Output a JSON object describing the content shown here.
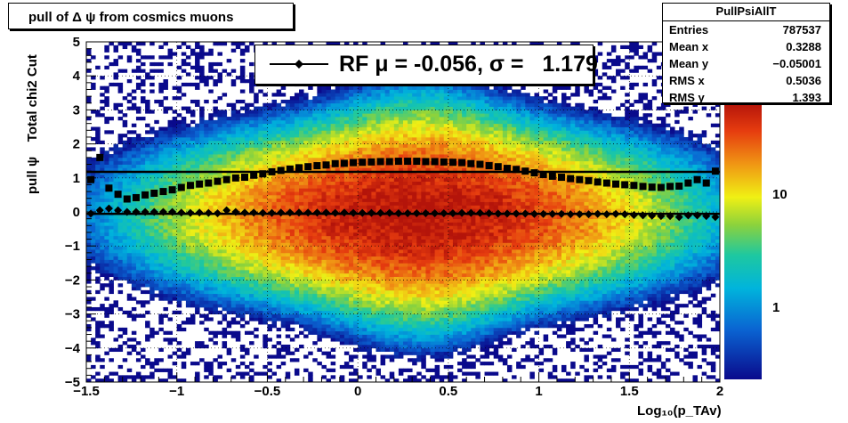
{
  "title": "pull of Δ ψ from cosmics muons",
  "stats": {
    "name": "PullPsiAllT",
    "rows": [
      {
        "k": "Entries",
        "v": "787537"
      },
      {
        "k": "Mean x",
        "v": "0.3288"
      },
      {
        "k": "Mean y",
        "v": "−0.05001"
      },
      {
        "k": "RMS x",
        "v": "0.5036"
      },
      {
        "k": "RMS y",
        "v": "1.393"
      }
    ]
  },
  "legend": {
    "text": "RF μ = -0.056, σ =   1.179"
  },
  "chart_data": {
    "type": "heatmap",
    "title": "pull of Δ ψ from cosmics muons",
    "xlabel": "Log₁₀(p_TAv)",
    "ylabel": "pull ψ    Total chi2 Cut",
    "xlim": [
      -1.5,
      2
    ],
    "ylim": [
      -5,
      5
    ],
    "x_ticks": [
      "−1.5",
      "−1",
      "−0.5",
      "0",
      "0.5",
      "1",
      "1.5",
      "2"
    ],
    "y_ticks": [
      "−5",
      "−4",
      "−3",
      "−2",
      "−1",
      "0",
      "1",
      "2",
      "3",
      "4",
      "5"
    ],
    "z_ticks": [
      "1",
      "10"
    ],
    "z_scale": "log",
    "grid": true,
    "horizontal_lines": [
      1.179,
      -0.056
    ],
    "series": [
      {
        "name": "RF",
        "marker": "diamond",
        "x": [
          -1.475,
          -1.425,
          -1.375,
          -1.325,
          -1.275,
          -1.225,
          -1.175,
          -1.125,
          -1.075,
          -1.025,
          -0.975,
          -0.925,
          -0.875,
          -0.825,
          -0.775,
          -0.725,
          -0.675,
          -0.625,
          -0.575,
          -0.525,
          -0.475,
          -0.425,
          -0.375,
          -0.325,
          -0.275,
          -0.225,
          -0.175,
          -0.125,
          -0.075,
          -0.025,
          0.025,
          0.075,
          0.125,
          0.175,
          0.225,
          0.275,
          0.325,
          0.375,
          0.425,
          0.475,
          0.525,
          0.575,
          0.625,
          0.675,
          0.725,
          0.775,
          0.825,
          0.875,
          0.925,
          0.975,
          1.025,
          1.075,
          1.125,
          1.175,
          1.225,
          1.275,
          1.325,
          1.375,
          1.425,
          1.475,
          1.525,
          1.575,
          1.625,
          1.675,
          1.725,
          1.775,
          1.825,
          1.875,
          1.925,
          1.975
        ],
        "y": [
          -0.05,
          0.05,
          0.1,
          0.05,
          0.0,
          0.0,
          0.0,
          0.0,
          0.0,
          0.0,
          -0.02,
          -0.03,
          -0.02,
          -0.03,
          -0.04,
          0.05,
          0.0,
          -0.02,
          -0.02,
          -0.03,
          -0.03,
          -0.02,
          -0.02,
          -0.02,
          -0.02,
          -0.02,
          -0.02,
          -0.03,
          -0.02,
          -0.03,
          -0.03,
          -0.03,
          -0.03,
          -0.03,
          -0.04,
          -0.04,
          -0.04,
          -0.04,
          -0.04,
          -0.04,
          -0.04,
          -0.03,
          -0.03,
          -0.03,
          -0.04,
          -0.05,
          -0.05,
          -0.05,
          -0.05,
          -0.06,
          -0.06,
          -0.06,
          -0.06,
          -0.07,
          -0.07,
          -0.07,
          -0.06,
          -0.07,
          -0.06,
          -0.07,
          -0.09,
          -0.1,
          -0.11,
          -0.12,
          -0.12,
          -0.15,
          -0.1,
          -0.1,
          -0.12,
          -0.15
        ]
      },
      {
        "name": "sigma",
        "marker": "square",
        "x": [
          -1.475,
          -1.425,
          -1.375,
          -1.325,
          -1.275,
          -1.225,
          -1.175,
          -1.125,
          -1.075,
          -1.025,
          -0.975,
          -0.925,
          -0.875,
          -0.825,
          -0.775,
          -0.725,
          -0.675,
          -0.625,
          -0.575,
          -0.525,
          -0.475,
          -0.425,
          -0.375,
          -0.325,
          -0.275,
          -0.225,
          -0.175,
          -0.125,
          -0.075,
          -0.025,
          0.025,
          0.075,
          0.125,
          0.175,
          0.225,
          0.275,
          0.325,
          0.375,
          0.425,
          0.475,
          0.525,
          0.575,
          0.625,
          0.675,
          0.725,
          0.775,
          0.825,
          0.875,
          0.925,
          0.975,
          1.025,
          1.075,
          1.125,
          1.175,
          1.225,
          1.275,
          1.325,
          1.375,
          1.425,
          1.475,
          1.525,
          1.575,
          1.625,
          1.675,
          1.725,
          1.775,
          1.825,
          1.875,
          1.925,
          1.975
        ],
        "y": [
          0.95,
          1.6,
          0.7,
          0.52,
          0.38,
          0.42,
          0.5,
          0.55,
          0.6,
          0.65,
          0.72,
          0.78,
          0.82,
          0.85,
          0.9,
          0.95,
          1.0,
          1.02,
          1.08,
          1.12,
          1.18,
          1.22,
          1.26,
          1.3,
          1.33,
          1.36,
          1.38,
          1.42,
          1.43,
          1.45,
          1.46,
          1.47,
          1.48,
          1.48,
          1.49,
          1.49,
          1.49,
          1.48,
          1.48,
          1.47,
          1.46,
          1.45,
          1.42,
          1.4,
          1.36,
          1.33,
          1.28,
          1.25,
          1.2,
          1.15,
          1.1,
          1.05,
          1.02,
          0.98,
          0.95,
          0.92,
          0.88,
          0.85,
          0.82,
          0.8,
          0.78,
          0.75,
          0.73,
          0.72,
          0.75,
          0.76,
          0.85,
          0.95,
          0.85,
          1.2
        ]
      }
    ]
  }
}
